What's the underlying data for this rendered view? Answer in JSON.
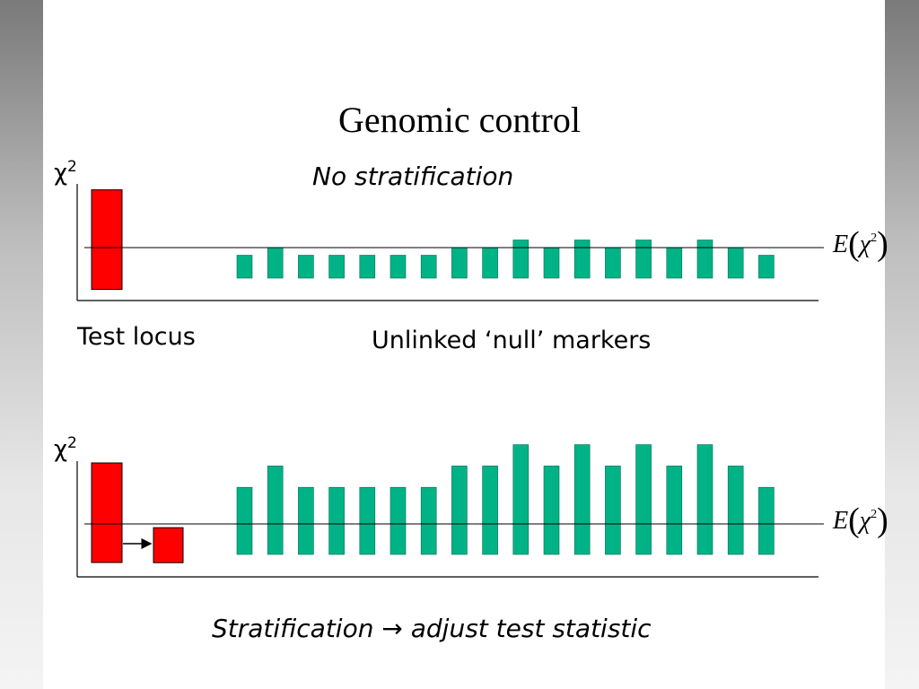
{
  "slide": {
    "title": "Genomic control",
    "top_panel": {
      "subtitle": "No stratification",
      "y_axis_symbol": "χ",
      "y_axis_exponent": "2",
      "expectation_label": {
        "E": "E",
        "open": "(",
        "chi": "χ",
        "exp": "2",
        "close": ")"
      },
      "test_locus_label": "Test locus",
      "markers_label": "Unlinked ‘null’ markers"
    },
    "bottom_panel": {
      "y_axis_symbol": "χ",
      "y_axis_exponent": "2",
      "expectation_label": {
        "E": "E",
        "open": "(",
        "chi": "χ",
        "exp": "2",
        "close": ")"
      },
      "caption_part1": "Stratification",
      "caption_arrow": "→",
      "caption_part2": "adjust test statistic"
    }
  },
  "chart_data": [
    {
      "type": "bar",
      "panel": "top",
      "note": "relative chi-square heights; expectation line E(χ²) = 1.0",
      "test_locus": {
        "value": 2.6,
        "color": "#ff0000"
      },
      "markers": {
        "values": [
          0.75,
          1.0,
          0.75,
          0.75,
          0.75,
          0.75,
          0.75,
          1.0,
          1.0,
          1.25,
          1.0,
          1.25,
          1.0,
          1.25,
          1.0,
          1.25,
          1.0,
          0.75
        ],
        "color": "#00b386"
      },
      "expectation": 1.0
    },
    {
      "type": "bar",
      "panel": "bottom",
      "note": "relative chi-square heights; expectation line E(χ²) = 1.0",
      "test_locus": {
        "value": 2.0,
        "color": "#ff0000"
      },
      "adjusted_test_locus": {
        "value": 1.2,
        "color": "#ff0000"
      },
      "markers": {
        "values": [
          2.2,
          2.9,
          2.2,
          2.2,
          2.2,
          2.2,
          2.2,
          2.9,
          2.9,
          3.6,
          2.9,
          3.6,
          2.9,
          3.6,
          2.9,
          3.6,
          2.9,
          2.2
        ],
        "color": "#00b386"
      },
      "expectation": 1.0
    }
  ]
}
